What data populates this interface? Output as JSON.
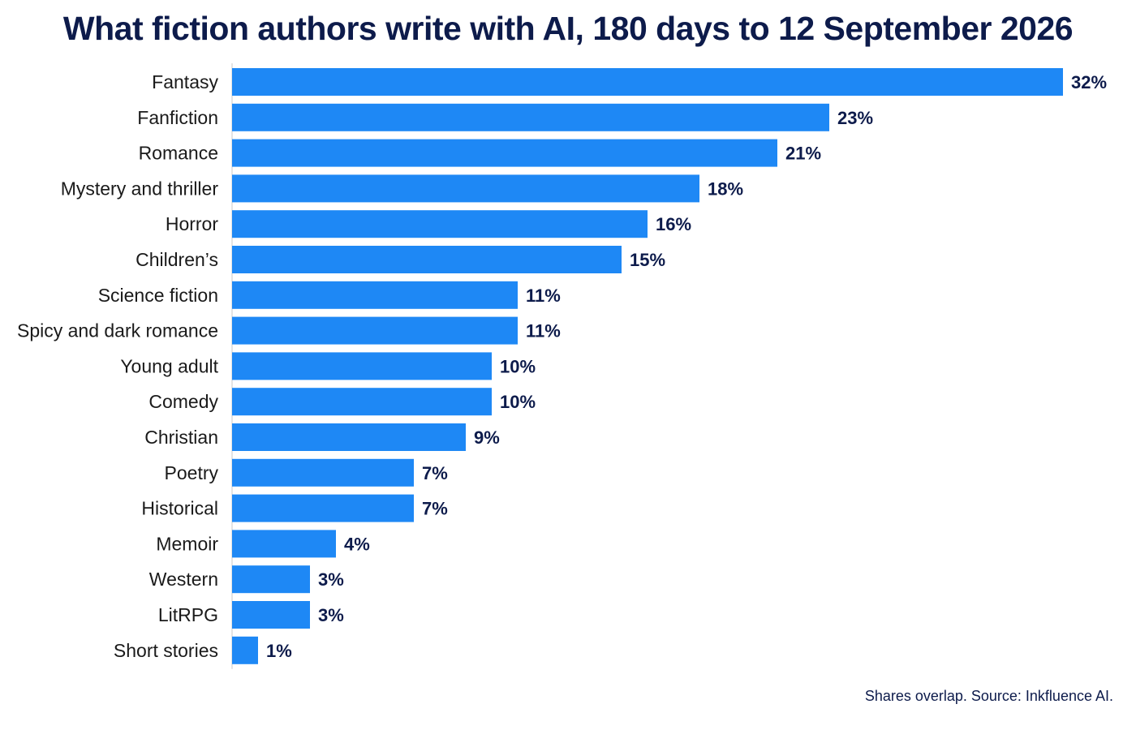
{
  "chart_data": {
    "type": "bar",
    "orientation": "horizontal",
    "title": "What fiction authors write with AI, 180 days to 12 September 2026",
    "categories": [
      "Fantasy",
      "Fanfiction",
      "Romance",
      "Mystery and thriller",
      "Horror",
      "Children’s",
      "Science fiction",
      "Spicy and dark romance",
      "Young adult",
      "Comedy",
      "Christian",
      "Poetry",
      "Historical",
      "Memoir",
      "Western",
      "LitRPG",
      "Short stories"
    ],
    "values": [
      32,
      23,
      21,
      18,
      16,
      15,
      11,
      11,
      10,
      10,
      9,
      7,
      7,
      4,
      3,
      3,
      1
    ],
    "value_labels": [
      "32%",
      "23%",
      "21%",
      "18%",
      "16%",
      "15%",
      "11%",
      "11%",
      "10%",
      "10%",
      "9%",
      "7%",
      "7%",
      "4%",
      "3%",
      "3%",
      "1%"
    ],
    "unit": "%",
    "xlim": [
      0,
      32
    ],
    "grid": false,
    "bar_color": "#1e88f5",
    "footnote": "Shares overlap. Source: Inkfluence AI."
  }
}
